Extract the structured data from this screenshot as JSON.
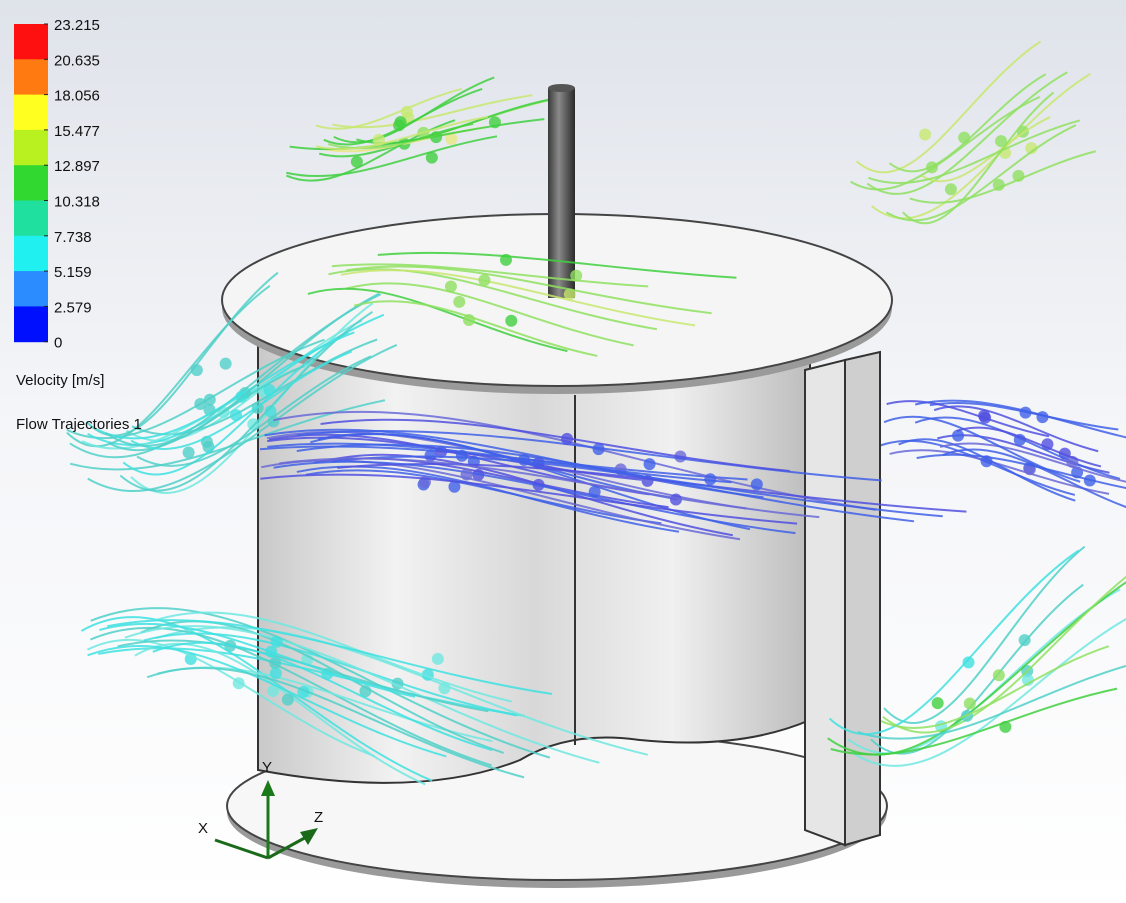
{
  "legend": {
    "ticks": [
      "23.215",
      "20.635",
      "18.056",
      "15.477",
      "12.897",
      "10.318",
      "7.738",
      "5.159",
      "2.579",
      "0"
    ],
    "quantity": "Velocity [m/s]",
    "feature": "Flow Trajectories 1"
  },
  "triad": {
    "x": "X",
    "y": "Y",
    "z": "Z"
  }
}
